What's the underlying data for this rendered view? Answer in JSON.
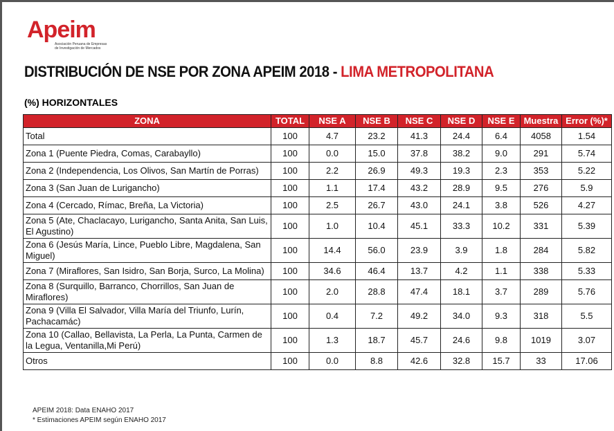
{
  "logo": {
    "name": "Apeim",
    "subtitle": [
      "Asociación Peruana de Empresas",
      "de Investigación de Mercados"
    ]
  },
  "header": {
    "title": "DISTRIBUCIÓN DE NSE POR ZONA APEIM 2018 - ",
    "title_highlight": "LIMA METROPOLITANA",
    "subtitle": "(%) HORIZONTALES"
  },
  "table": {
    "columns": [
      "ZONA",
      "TOTAL",
      "NSE A",
      "NSE B",
      "NSE C",
      "NSE D",
      "NSE E",
      "Muestra",
      "Error (%)*"
    ],
    "rows": [
      [
        "Total",
        "100",
        "4.7",
        "23.2",
        "41.3",
        "24.4",
        "6.4",
        "4058",
        "1.54"
      ],
      [
        "Zona 1 (Puente Piedra, Comas, Carabayllo)",
        "100",
        "0.0",
        "15.0",
        "37.8",
        "38.2",
        "9.0",
        "291",
        "5.74"
      ],
      [
        "Zona 2 (Independencia, Los Olivos, San Martín de Porras)",
        "100",
        "2.2",
        "26.9",
        "49.3",
        "19.3",
        "2.3",
        "353",
        "5.22"
      ],
      [
        "Zona 3 (San Juan de Lurigancho)",
        "100",
        "1.1",
        "17.4",
        "43.2",
        "28.9",
        "9.5",
        "276",
        "5.9"
      ],
      [
        "Zona 4 (Cercado, Rímac, Breña, La Victoria)",
        "100",
        "2.5",
        "26.7",
        "43.0",
        "24.1",
        "3.8",
        "526",
        "4.27"
      ],
      [
        "Zona 5 (Ate, Chaclacayo, Lurigancho, Santa Anita, San Luis, El Agustino)",
        "100",
        "1.0",
        "10.4",
        "45.1",
        "33.3",
        "10.2",
        "331",
        "5.39"
      ],
      [
        "Zona 6 (Jesús María, Lince, Pueblo Libre, Magdalena, San Miguel)",
        "100",
        "14.4",
        "56.0",
        "23.9",
        "3.9",
        "1.8",
        "284",
        "5.82"
      ],
      [
        "Zona 7 (Miraflores, San Isidro, San Borja, Surco, La Molina)",
        "100",
        "34.6",
        "46.4",
        "13.7",
        "4.2",
        "1.1",
        "338",
        "5.33"
      ],
      [
        "Zona 8 (Surquillo, Barranco, Chorrillos, San Juan de Miraflores)",
        "100",
        "2.0",
        "28.8",
        "47.4",
        "18.1",
        "3.7",
        "289",
        "5.76"
      ],
      [
        "Zona 9 (Villa El Salvador, Villa María del Triunfo, Lurín, Pachacamác)",
        "100",
        "0.4",
        "7.2",
        "49.2",
        "34.0",
        "9.3",
        "318",
        "5.5"
      ],
      [
        "Zona 10 (Callao, Bellavista, La Perla, La Punta, Carmen de la Legua, Ventanilla,Mi Perú)",
        "100",
        "1.3",
        "18.7",
        "45.7",
        "24.6",
        "9.8",
        "1019",
        "3.07"
      ],
      [
        "Otros",
        "100",
        "0.0",
        "8.8",
        "42.6",
        "32.8",
        "15.7",
        "33",
        "17.06"
      ]
    ]
  },
  "footer": [
    "APEIM 2018: Data ENAHO 2017",
    "* Estimaciones APEIM según ENAHO 2017"
  ]
}
